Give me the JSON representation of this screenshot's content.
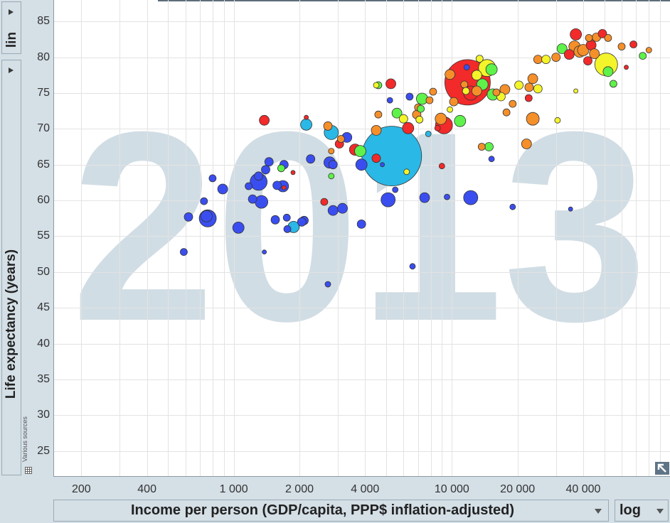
{
  "y_scale": {
    "value": "lin"
  },
  "x_scale": {
    "value": "log"
  },
  "y_axis": {
    "label": "Life expectancy (years)"
  },
  "x_axis": {
    "label": "Income per person (GDP/capita, PPP$ inflation-adjusted)"
  },
  "sources_label": "Various sources",
  "icons": {
    "y_scale_arrow": "triangle-right-icon",
    "x_dropdown": "chevron-down-icon",
    "table": "table-icon",
    "expand": "expand-arrow-icon"
  },
  "colors": {
    "red": "#f22a2a",
    "orange": "#f58f2a",
    "yellow": "#f4f42a",
    "green": "#5ef24a",
    "cyan": "#2ab8e6",
    "blue": "#3a4ef0",
    "watermark": "#d1dde4"
  },
  "chart_data": {
    "type": "scatter",
    "year_watermark": "2013",
    "xlabel": "Income per person (GDP/capita, PPP$ inflation-adjusted)",
    "ylabel": "Life expectancy (years)",
    "x_scale": "log",
    "y_scale": "lin",
    "xlim": [
      150,
      100000
    ],
    "ylim": [
      21.5,
      88
    ],
    "grid": true,
    "x_ticks": [
      200,
      400,
      1000,
      2000,
      4000,
      10000,
      20000,
      40000
    ],
    "x_tick_labels": [
      "200",
      "400",
      "1 000",
      "2 000",
      "4 000",
      "10 000",
      "20 000",
      "40 000"
    ],
    "y_ticks": [
      25,
      30,
      35,
      40,
      45,
      50,
      55,
      60,
      65,
      70,
      75,
      80,
      85
    ],
    "y_tick_labels": [
      "25",
      "30",
      "35",
      "40",
      "45",
      "50",
      "55",
      "60",
      "65",
      "70",
      "75",
      "80",
      "85"
    ],
    "points": [
      {
        "x": 11800,
        "y": 76.5,
        "s": 32,
        "c": "red"
      },
      {
        "x": 5300,
        "y": 66.2,
        "s": 42,
        "c": "cyan"
      },
      {
        "x": 51000,
        "y": 79,
        "s": 16,
        "c": "yellow"
      },
      {
        "x": 37000,
        "y": 83.2,
        "s": 8,
        "c": "red"
      },
      {
        "x": 23500,
        "y": 71.4,
        "s": 9,
        "c": "orange"
      },
      {
        "x": 9200,
        "y": 70.5,
        "s": 12,
        "c": "red"
      },
      {
        "x": 5100,
        "y": 60.1,
        "s": 10,
        "c": "blue"
      },
      {
        "x": 2800,
        "y": 69.5,
        "s": 10,
        "c": "cyan"
      },
      {
        "x": 6300,
        "y": 70.1,
        "s": 8,
        "c": "red"
      },
      {
        "x": 5250,
        "y": 76.3,
        "s": 7,
        "c": "red"
      },
      {
        "x": 14500,
        "y": 78.5,
        "s": 12,
        "c": "yellow"
      },
      {
        "x": 15200,
        "y": 78.3,
        "s": 8,
        "c": "green"
      },
      {
        "x": 15400,
        "y": 74.8,
        "s": 8,
        "c": "green"
      },
      {
        "x": 12200,
        "y": 75,
        "s": 10,
        "c": "red"
      },
      {
        "x": 13800,
        "y": 76.2,
        "s": 8,
        "c": "green"
      },
      {
        "x": 10900,
        "y": 71.1,
        "s": 8,
        "c": "green"
      },
      {
        "x": 9800,
        "y": 77.6,
        "s": 7,
        "c": "orange"
      },
      {
        "x": 13000,
        "y": 75.3,
        "s": 7,
        "c": "orange"
      },
      {
        "x": 17500,
        "y": 75.5,
        "s": 7,
        "c": "orange"
      },
      {
        "x": 17800,
        "y": 72.3,
        "s": 5,
        "c": "orange"
      },
      {
        "x": 20300,
        "y": 76.1,
        "s": 6,
        "c": "yellow"
      },
      {
        "x": 22600,
        "y": 75.8,
        "s": 6,
        "c": "orange"
      },
      {
        "x": 23500,
        "y": 77,
        "s": 7,
        "c": "orange"
      },
      {
        "x": 24800,
        "y": 75.6,
        "s": 6,
        "c": "yellow"
      },
      {
        "x": 22500,
        "y": 74.3,
        "s": 5,
        "c": "red"
      },
      {
        "x": 24800,
        "y": 79.7,
        "s": 6,
        "c": "orange"
      },
      {
        "x": 27000,
        "y": 79.7,
        "s": 6,
        "c": "yellow"
      },
      {
        "x": 30000,
        "y": 80,
        "s": 6,
        "c": "orange"
      },
      {
        "x": 32000,
        "y": 81.2,
        "s": 7,
        "c": "green"
      },
      {
        "x": 34500,
        "y": 80.4,
        "s": 7,
        "c": "red"
      },
      {
        "x": 36500,
        "y": 81.5,
        "s": 8,
        "c": "orange"
      },
      {
        "x": 38500,
        "y": 80.8,
        "s": 8,
        "c": "orange"
      },
      {
        "x": 40000,
        "y": 81,
        "s": 8,
        "c": "orange"
      },
      {
        "x": 42000,
        "y": 79.5,
        "s": 6,
        "c": "red"
      },
      {
        "x": 43500,
        "y": 81.7,
        "s": 7,
        "c": "red"
      },
      {
        "x": 45000,
        "y": 80.5,
        "s": 7,
        "c": "orange"
      },
      {
        "x": 46000,
        "y": 82.8,
        "s": 6,
        "c": "orange"
      },
      {
        "x": 42500,
        "y": 82.7,
        "s": 5,
        "c": "orange"
      },
      {
        "x": 52000,
        "y": 78,
        "s": 7,
        "c": "green"
      },
      {
        "x": 55000,
        "y": 76.3,
        "s": 5,
        "c": "green"
      },
      {
        "x": 49000,
        "y": 83.3,
        "s": 6,
        "c": "red"
      },
      {
        "x": 52000,
        "y": 82.7,
        "s": 5,
        "c": "orange"
      },
      {
        "x": 60000,
        "y": 81.5,
        "s": 5,
        "c": "orange"
      },
      {
        "x": 68000,
        "y": 81.8,
        "s": 5,
        "c": "red"
      },
      {
        "x": 75000,
        "y": 80.2,
        "s": 5,
        "c": "green"
      },
      {
        "x": 80000,
        "y": 81,
        "s": 4,
        "c": "orange"
      },
      {
        "x": 63000,
        "y": 78.6,
        "s": 3,
        "c": "red"
      },
      {
        "x": 37000,
        "y": 75.3,
        "s": 3,
        "c": "yellow"
      },
      {
        "x": 30500,
        "y": 71.2,
        "s": 4,
        "c": "yellow"
      },
      {
        "x": 22000,
        "y": 67.9,
        "s": 7,
        "c": "orange"
      },
      {
        "x": 13700,
        "y": 67.5,
        "s": 5,
        "c": "orange"
      },
      {
        "x": 15200,
        "y": 65.8,
        "s": 4,
        "c": "blue"
      },
      {
        "x": 9000,
        "y": 64.8,
        "s": 4,
        "c": "red"
      },
      {
        "x": 3600,
        "y": 67.1,
        "s": 8,
        "c": "red"
      },
      {
        "x": 3800,
        "y": 66.9,
        "s": 8,
        "c": "green"
      },
      {
        "x": 3850,
        "y": 65,
        "s": 8,
        "c": "blue"
      },
      {
        "x": 4500,
        "y": 65.9,
        "s": 6,
        "c": "red"
      },
      {
        "x": 3300,
        "y": 68.8,
        "s": 7,
        "c": "blue"
      },
      {
        "x": 3050,
        "y": 67.9,
        "s": 6,
        "c": "red"
      },
      {
        "x": 3100,
        "y": 68.6,
        "s": 5,
        "c": "orange"
      },
      {
        "x": 4500,
        "y": 69.8,
        "s": 7,
        "c": "orange"
      },
      {
        "x": 7300,
        "y": 74.2,
        "s": 8,
        "c": "green"
      },
      {
        "x": 7900,
        "y": 74,
        "s": 5,
        "c": "orange"
      },
      {
        "x": 6900,
        "y": 72,
        "s": 6,
        "c": "orange"
      },
      {
        "x": 7100,
        "y": 71.3,
        "s": 5,
        "c": "yellow"
      },
      {
        "x": 8900,
        "y": 71.4,
        "s": 8,
        "c": "orange"
      },
      {
        "x": 8600,
        "y": 70.1,
        "s": 4,
        "c": "red"
      },
      {
        "x": 5600,
        "y": 72.2,
        "s": 7,
        "c": "green"
      },
      {
        "x": 6000,
        "y": 71.4,
        "s": 6,
        "c": "yellow"
      },
      {
        "x": 7000,
        "y": 73,
        "s": 5,
        "c": "orange"
      },
      {
        "x": 7200,
        "y": 72.8,
        "s": 5,
        "c": "green"
      },
      {
        "x": 7800,
        "y": 69.3,
        "s": 4,
        "c": "cyan"
      },
      {
        "x": 4600,
        "y": 76.1,
        "s": 5,
        "c": "green"
      },
      {
        "x": 4600,
        "y": 72,
        "s": 5,
        "c": "orange"
      },
      {
        "x": 4500,
        "y": 76.1,
        "s": 4,
        "c": "yellow"
      },
      {
        "x": 6400,
        "y": 74.5,
        "s": 5,
        "c": "blue"
      },
      {
        "x": 11400,
        "y": 76.2,
        "s": 5,
        "c": "orange"
      },
      {
        "x": 11600,
        "y": 75.3,
        "s": 5,
        "c": "yellow"
      },
      {
        "x": 10200,
        "y": 73.8,
        "s": 6,
        "c": "orange"
      },
      {
        "x": 13400,
        "y": 79.8,
        "s": 5,
        "c": "yellow"
      },
      {
        "x": 16800,
        "y": 74.5,
        "s": 6,
        "c": "yellow"
      },
      {
        "x": 19000,
        "y": 73.5,
        "s": 5,
        "c": "orange"
      },
      {
        "x": 14800,
        "y": 67.5,
        "s": 6,
        "c": "green"
      },
      {
        "x": 16000,
        "y": 75.1,
        "s": 5,
        "c": "orange"
      },
      {
        "x": 2700,
        "y": 70.4,
        "s": 6,
        "c": "orange"
      },
      {
        "x": 2150,
        "y": 70.6,
        "s": 8,
        "c": "cyan"
      },
      {
        "x": 2150,
        "y": 71.6,
        "s": 3,
        "c": "red"
      },
      {
        "x": 1380,
        "y": 71.2,
        "s": 7,
        "c": "red"
      },
      {
        "x": 2250,
        "y": 65.8,
        "s": 6,
        "c": "blue"
      },
      {
        "x": 2750,
        "y": 65.3,
        "s": 8,
        "c": "blue"
      },
      {
        "x": 2850,
        "y": 65,
        "s": 6,
        "c": "blue"
      },
      {
        "x": 1870,
        "y": 63.9,
        "s": 3,
        "c": "red"
      },
      {
        "x": 2800,
        "y": 63.4,
        "s": 4,
        "c": "green"
      },
      {
        "x": 2800,
        "y": 66.9,
        "s": 4,
        "c": "orange"
      },
      {
        "x": 2600,
        "y": 59.8,
        "s": 5,
        "c": "red"
      },
      {
        "x": 1300,
        "y": 62.6,
        "s": 12,
        "c": "blue"
      },
      {
        "x": 1400,
        "y": 64.3,
        "s": 6,
        "c": "blue"
      },
      {
        "x": 1300,
        "y": 63.4,
        "s": 6,
        "c": "blue"
      },
      {
        "x": 1450,
        "y": 65.4,
        "s": 6,
        "c": "blue"
      },
      {
        "x": 1650,
        "y": 64.5,
        "s": 5,
        "c": "green"
      },
      {
        "x": 1700,
        "y": 65,
        "s": 6,
        "c": "blue"
      },
      {
        "x": 1170,
        "y": 62,
        "s": 5,
        "c": "blue"
      },
      {
        "x": 1580,
        "y": 62.1,
        "s": 6,
        "c": "blue"
      },
      {
        "x": 1680,
        "y": 62,
        "s": 8,
        "c": "blue"
      },
      {
        "x": 1700,
        "y": 61.8,
        "s": 3,
        "c": "red"
      },
      {
        "x": 1220,
        "y": 60.2,
        "s": 6,
        "c": "blue"
      },
      {
        "x": 1340,
        "y": 59.8,
        "s": 9,
        "c": "blue"
      },
      {
        "x": 1550,
        "y": 57.3,
        "s": 6,
        "c": "blue"
      },
      {
        "x": 1750,
        "y": 57.6,
        "s": 5,
        "c": "blue"
      },
      {
        "x": 1880,
        "y": 56.3,
        "s": 8,
        "c": "cyan"
      },
      {
        "x": 1760,
        "y": 56,
        "s": 5,
        "c": "blue"
      },
      {
        "x": 2100,
        "y": 57.2,
        "s": 6,
        "c": "blue"
      },
      {
        "x": 2050,
        "y": 57,
        "s": 6,
        "c": "blue"
      },
      {
        "x": 2850,
        "y": 58.6,
        "s": 7,
        "c": "blue"
      },
      {
        "x": 3150,
        "y": 58.9,
        "s": 7,
        "c": "blue"
      },
      {
        "x": 3850,
        "y": 56.7,
        "s": 6,
        "c": "blue"
      },
      {
        "x": 5500,
        "y": 61.5,
        "s": 4,
        "c": "blue"
      },
      {
        "x": 7500,
        "y": 60.4,
        "s": 7,
        "c": "blue"
      },
      {
        "x": 9500,
        "y": 60.5,
        "s": 4,
        "c": "blue"
      },
      {
        "x": 12200,
        "y": 60.4,
        "s": 10,
        "c": "blue"
      },
      {
        "x": 19000,
        "y": 59.1,
        "s": 4,
        "c": "blue"
      },
      {
        "x": 35000,
        "y": 58.8,
        "s": 3,
        "c": "blue"
      },
      {
        "x": 6600,
        "y": 50.8,
        "s": 4,
        "c": "blue"
      },
      {
        "x": 2700,
        "y": 48.3,
        "s": 4,
        "c": "blue"
      },
      {
        "x": 1380,
        "y": 52.8,
        "s": 3,
        "c": "blue"
      },
      {
        "x": 590,
        "y": 52.8,
        "s": 5,
        "c": "blue"
      },
      {
        "x": 620,
        "y": 57.7,
        "s": 6,
        "c": "blue"
      },
      {
        "x": 760,
        "y": 57.5,
        "s": 12,
        "c": "blue"
      },
      {
        "x": 750,
        "y": 57.8,
        "s": 8,
        "c": "blue"
      },
      {
        "x": 730,
        "y": 59.9,
        "s": 5,
        "c": "blue"
      },
      {
        "x": 800,
        "y": 63.1,
        "s": 5,
        "c": "blue"
      },
      {
        "x": 890,
        "y": 61.6,
        "s": 7,
        "c": "blue"
      },
      {
        "x": 1050,
        "y": 56.2,
        "s": 8,
        "c": "blue"
      },
      {
        "x": 4800,
        "y": 65,
        "s": 3,
        "c": "blue"
      },
      {
        "x": 6200,
        "y": 64,
        "s": 4,
        "c": "yellow"
      },
      {
        "x": 5200,
        "y": 74,
        "s": 4,
        "c": "blue"
      },
      {
        "x": 9800,
        "y": 72.7,
        "s": 4,
        "c": "yellow"
      },
      {
        "x": 8200,
        "y": 75.2,
        "s": 5,
        "c": "orange"
      },
      {
        "x": 11700,
        "y": 78.6,
        "s": 4,
        "c": "blue"
      },
      {
        "x": 13000,
        "y": 77.5,
        "s": 7,
        "c": "yellow"
      }
    ]
  }
}
